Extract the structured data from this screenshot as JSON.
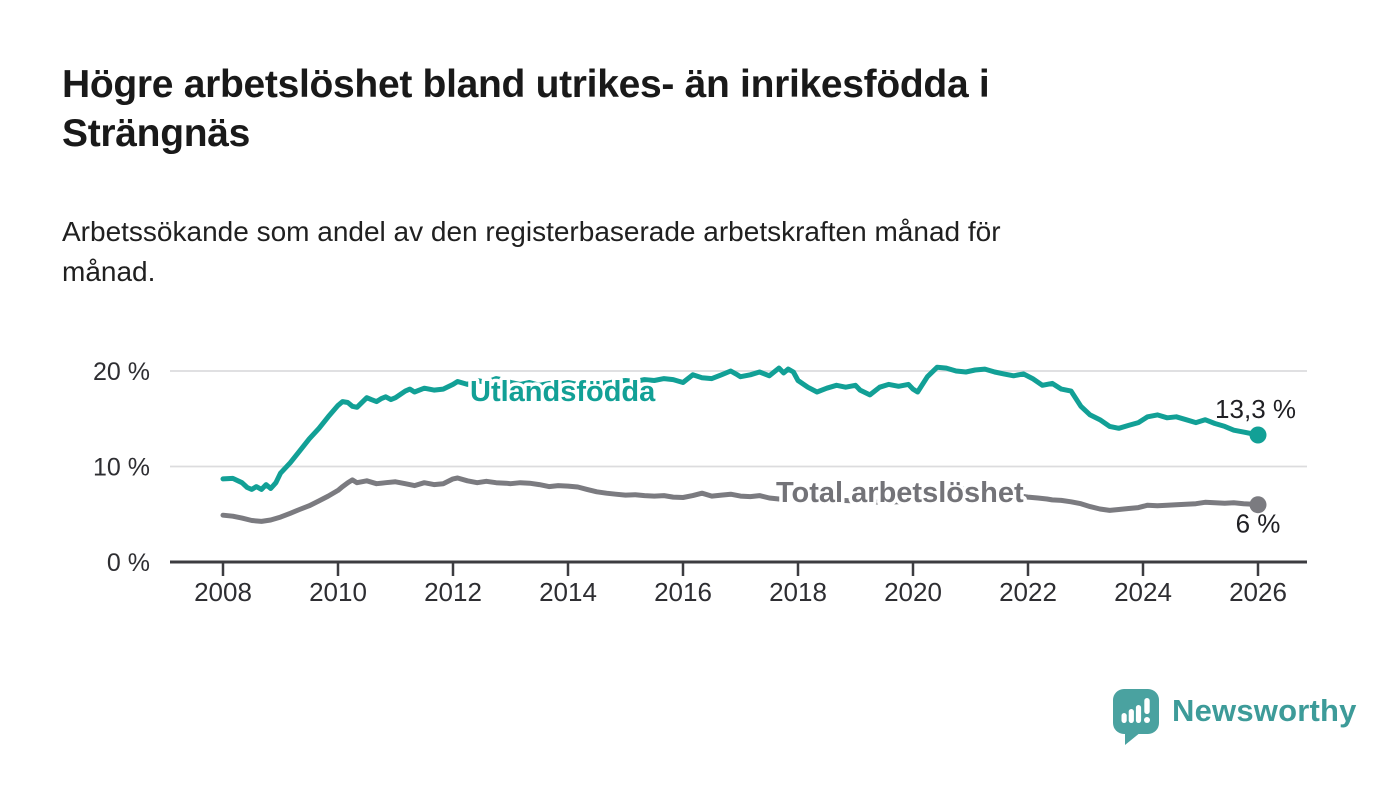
{
  "header": {
    "title": "Högre arbetslöshet bland utrikes- än inrikesfödda i Strängnäs",
    "title_lines": [
      "Högre arbetslöshet bland utrikes- än inrikesfödda i",
      "Strängnäs"
    ],
    "subtitle": "Arbetssökande som andel av den registerbaserade arbetskraften månad för månad.",
    "subtitle_lines": [
      "Arbetssökande som andel av den registerbaserade arbetskraften månad för",
      "månad."
    ]
  },
  "chart_data": {
    "type": "line",
    "title": "Högre arbetslöshet bland utrikes- än inrikesfödda i Strängnäs",
    "subtitle": "Arbetssökande som andel av den registerbaserade arbetskraften månad för månad.",
    "unit": "%",
    "grid": "horizontal",
    "legend_position": "inline-labels",
    "colors": {
      "accent_teal": "#12a096",
      "line_gray": "#7b7b80",
      "axis": "#3c3c40",
      "gridline": "#dcdcde"
    },
    "x_axis": {
      "ticks": [
        2008,
        2010,
        2012,
        2014,
        2016,
        2018,
        2020,
        2022,
        2024,
        2026
      ],
      "range": [
        2007.1,
        2026.85
      ]
    },
    "y_axis": {
      "ticks": [
        {
          "value": 0,
          "label": "0 %"
        },
        {
          "value": 10,
          "label": "10 %"
        },
        {
          "value": 20,
          "label": "20 %"
        }
      ],
      "range": [
        0,
        21.3
      ]
    },
    "series": [
      {
        "name": "Total arbetslöshet",
        "color": "#7b7b80",
        "label_color": "#737378",
        "end_value": 6.0,
        "end_label": "6 %",
        "points": [
          [
            2008.0,
            4.9
          ],
          [
            2008.17,
            4.8
          ],
          [
            2008.33,
            4.6
          ],
          [
            2008.5,
            4.35
          ],
          [
            2008.67,
            4.25
          ],
          [
            2008.83,
            4.4
          ],
          [
            2009.0,
            4.7
          ],
          [
            2009.17,
            5.1
          ],
          [
            2009.33,
            5.5
          ],
          [
            2009.5,
            5.9
          ],
          [
            2009.67,
            6.4
          ],
          [
            2009.83,
            6.9
          ],
          [
            2010.0,
            7.5
          ],
          [
            2010.08,
            7.9
          ],
          [
            2010.17,
            8.3
          ],
          [
            2010.25,
            8.6
          ],
          [
            2010.33,
            8.3
          ],
          [
            2010.5,
            8.5
          ],
          [
            2010.67,
            8.2
          ],
          [
            2010.83,
            8.3
          ],
          [
            2011.0,
            8.4
          ],
          [
            2011.17,
            8.2
          ],
          [
            2011.33,
            8.0
          ],
          [
            2011.5,
            8.3
          ],
          [
            2011.67,
            8.1
          ],
          [
            2011.83,
            8.2
          ],
          [
            2012.0,
            8.7
          ],
          [
            2012.08,
            8.8
          ],
          [
            2012.25,
            8.5
          ],
          [
            2012.42,
            8.3
          ],
          [
            2012.58,
            8.45
          ],
          [
            2012.75,
            8.3
          ],
          [
            2012.92,
            8.25
          ],
          [
            2013.0,
            8.2
          ],
          [
            2013.17,
            8.3
          ],
          [
            2013.33,
            8.25
          ],
          [
            2013.5,
            8.1
          ],
          [
            2013.67,
            7.9
          ],
          [
            2013.83,
            8.0
          ],
          [
            2014.0,
            7.95
          ],
          [
            2014.17,
            7.85
          ],
          [
            2014.33,
            7.6
          ],
          [
            2014.5,
            7.35
          ],
          [
            2014.67,
            7.2
          ],
          [
            2014.83,
            7.1
          ],
          [
            2015.0,
            7.0
          ],
          [
            2015.17,
            7.05
          ],
          [
            2015.33,
            6.95
          ],
          [
            2015.5,
            6.9
          ],
          [
            2015.67,
            6.95
          ],
          [
            2015.83,
            6.8
          ],
          [
            2016.0,
            6.75
          ],
          [
            2016.17,
            6.95
          ],
          [
            2016.33,
            7.2
          ],
          [
            2016.5,
            6.9
          ],
          [
            2016.67,
            7.0
          ],
          [
            2016.83,
            7.1
          ],
          [
            2017.0,
            6.9
          ],
          [
            2017.17,
            6.85
          ],
          [
            2017.33,
            6.95
          ],
          [
            2017.5,
            6.7
          ],
          [
            2017.67,
            6.6
          ],
          [
            2017.83,
            6.7
          ],
          [
            2018.0,
            6.7
          ],
          [
            2018.25,
            6.6
          ],
          [
            2018.5,
            6.5
          ],
          [
            2018.75,
            6.45
          ],
          [
            2019.0,
            6.4
          ],
          [
            2019.25,
            6.3
          ],
          [
            2019.5,
            6.25
          ],
          [
            2019.75,
            6.3
          ],
          [
            2020.0,
            6.5
          ],
          [
            2020.17,
            6.7
          ],
          [
            2020.33,
            7.4
          ],
          [
            2020.5,
            7.7
          ],
          [
            2020.67,
            7.8
          ],
          [
            2020.83,
            7.7
          ],
          [
            2021.0,
            7.6
          ],
          [
            2021.25,
            7.4
          ],
          [
            2021.5,
            7.2
          ],
          [
            2021.75,
            7.0
          ],
          [
            2022.0,
            6.8
          ],
          [
            2022.17,
            6.7
          ],
          [
            2022.33,
            6.6
          ],
          [
            2022.42,
            6.5
          ],
          [
            2022.58,
            6.45
          ],
          [
            2022.75,
            6.3
          ],
          [
            2022.92,
            6.1
          ],
          [
            2023.08,
            5.8
          ],
          [
            2023.25,
            5.55
          ],
          [
            2023.42,
            5.4
          ],
          [
            2023.58,
            5.5
          ],
          [
            2023.75,
            5.6
          ],
          [
            2023.92,
            5.7
          ],
          [
            2024.08,
            5.95
          ],
          [
            2024.25,
            5.9
          ],
          [
            2024.42,
            5.95
          ],
          [
            2024.58,
            6.0
          ],
          [
            2024.75,
            6.05
          ],
          [
            2024.92,
            6.1
          ],
          [
            2025.08,
            6.25
          ],
          [
            2025.25,
            6.2
          ],
          [
            2025.42,
            6.15
          ],
          [
            2025.58,
            6.2
          ],
          [
            2025.75,
            6.1
          ],
          [
            2025.92,
            6.05
          ],
          [
            2026.0,
            6.0
          ]
        ]
      },
      {
        "name": "Utlandsfödda",
        "color": "#12a096",
        "label_color": "#12a096",
        "end_value": 13.3,
        "end_label": "13,3 %",
        "points": [
          [
            2008.0,
            8.7
          ],
          [
            2008.17,
            8.75
          ],
          [
            2008.33,
            8.3
          ],
          [
            2008.42,
            7.8
          ],
          [
            2008.5,
            7.6
          ],
          [
            2008.58,
            7.9
          ],
          [
            2008.67,
            7.6
          ],
          [
            2008.75,
            8.1
          ],
          [
            2008.83,
            7.7
          ],
          [
            2008.92,
            8.3
          ],
          [
            2009.0,
            9.3
          ],
          [
            2009.17,
            10.4
          ],
          [
            2009.33,
            11.6
          ],
          [
            2009.5,
            12.9
          ],
          [
            2009.67,
            14.0
          ],
          [
            2009.83,
            15.2
          ],
          [
            2010.0,
            16.4
          ],
          [
            2010.08,
            16.8
          ],
          [
            2010.17,
            16.7
          ],
          [
            2010.25,
            16.3
          ],
          [
            2010.33,
            16.2
          ],
          [
            2010.5,
            17.2
          ],
          [
            2010.58,
            17.0
          ],
          [
            2010.67,
            16.8
          ],
          [
            2010.75,
            17.1
          ],
          [
            2010.83,
            17.3
          ],
          [
            2010.92,
            17.0
          ],
          [
            2011.0,
            17.2
          ],
          [
            2011.17,
            17.9
          ],
          [
            2011.25,
            18.1
          ],
          [
            2011.33,
            17.8
          ],
          [
            2011.5,
            18.2
          ],
          [
            2011.67,
            18.0
          ],
          [
            2011.83,
            18.1
          ],
          [
            2012.0,
            18.6
          ],
          [
            2012.08,
            18.9
          ],
          [
            2012.25,
            18.6
          ],
          [
            2012.42,
            19.0
          ],
          [
            2012.58,
            18.8
          ],
          [
            2012.75,
            19.2
          ],
          [
            2012.92,
            19.0
          ],
          [
            2013.0,
            18.8
          ],
          [
            2013.17,
            18.6
          ],
          [
            2013.33,
            18.8
          ],
          [
            2013.5,
            18.5
          ],
          [
            2013.67,
            18.7
          ],
          [
            2013.83,
            18.6
          ],
          [
            2014.0,
            18.8
          ],
          [
            2014.17,
            18.6
          ],
          [
            2014.33,
            18.7
          ],
          [
            2014.5,
            18.8
          ],
          [
            2014.67,
            18.7
          ],
          [
            2014.83,
            18.9
          ],
          [
            2015.0,
            19.0
          ],
          [
            2015.17,
            18.9
          ],
          [
            2015.33,
            19.1
          ],
          [
            2015.5,
            19.0
          ],
          [
            2015.67,
            19.2
          ],
          [
            2015.83,
            19.1
          ],
          [
            2016.0,
            18.8
          ],
          [
            2016.17,
            19.6
          ],
          [
            2016.33,
            19.3
          ],
          [
            2016.5,
            19.2
          ],
          [
            2016.67,
            19.6
          ],
          [
            2016.83,
            20.0
          ],
          [
            2016.92,
            19.7
          ],
          [
            2017.0,
            19.4
          ],
          [
            2017.17,
            19.6
          ],
          [
            2017.33,
            19.9
          ],
          [
            2017.5,
            19.5
          ],
          [
            2017.67,
            20.3
          ],
          [
            2017.75,
            19.8
          ],
          [
            2017.83,
            20.2
          ],
          [
            2017.92,
            19.9
          ],
          [
            2018.0,
            19.0
          ],
          [
            2018.17,
            18.3
          ],
          [
            2018.33,
            17.8
          ],
          [
            2018.5,
            18.2
          ],
          [
            2018.67,
            18.5
          ],
          [
            2018.83,
            18.3
          ],
          [
            2019.0,
            18.5
          ],
          [
            2019.08,
            18.0
          ],
          [
            2019.25,
            17.5
          ],
          [
            2019.42,
            18.3
          ],
          [
            2019.58,
            18.6
          ],
          [
            2019.75,
            18.4
          ],
          [
            2019.92,
            18.6
          ],
          [
            2020.0,
            18.1
          ],
          [
            2020.08,
            17.8
          ],
          [
            2020.25,
            19.4
          ],
          [
            2020.42,
            20.4
          ],
          [
            2020.58,
            20.3
          ],
          [
            2020.75,
            20.0
          ],
          [
            2020.92,
            19.9
          ],
          [
            2021.08,
            20.1
          ],
          [
            2021.25,
            20.2
          ],
          [
            2021.42,
            19.9
          ],
          [
            2021.58,
            19.7
          ],
          [
            2021.75,
            19.5
          ],
          [
            2021.92,
            19.7
          ],
          [
            2022.08,
            19.2
          ],
          [
            2022.25,
            18.5
          ],
          [
            2022.42,
            18.7
          ],
          [
            2022.58,
            18.1
          ],
          [
            2022.75,
            17.9
          ],
          [
            2022.92,
            16.3
          ],
          [
            2023.08,
            15.4
          ],
          [
            2023.25,
            14.9
          ],
          [
            2023.42,
            14.2
          ],
          [
            2023.58,
            14.0
          ],
          [
            2023.75,
            14.3
          ],
          [
            2023.92,
            14.6
          ],
          [
            2024.08,
            15.2
          ],
          [
            2024.25,
            15.4
          ],
          [
            2024.42,
            15.1
          ],
          [
            2024.58,
            15.2
          ],
          [
            2024.75,
            14.9
          ],
          [
            2024.92,
            14.6
          ],
          [
            2025.08,
            14.9
          ],
          [
            2025.25,
            14.5
          ],
          [
            2025.42,
            14.2
          ],
          [
            2025.58,
            13.8
          ],
          [
            2025.75,
            13.6
          ],
          [
            2025.92,
            13.4
          ],
          [
            2026.0,
            13.3
          ]
        ]
      }
    ]
  },
  "footer": {
    "brand": "Newsworthy",
    "logo_icon": "speech-bubble-bar-chart-icon",
    "brand_color": "#3d9b99"
  }
}
